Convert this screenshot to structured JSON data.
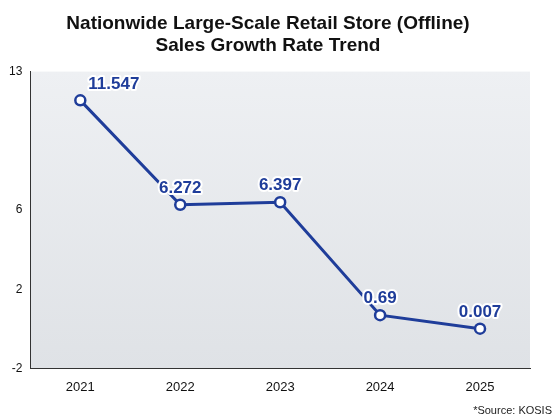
{
  "chart_data": {
    "type": "line",
    "title": "Nationwide Large-Scale Retail Store (Offline)",
    "subtitle": "Sales Growth Rate Trend",
    "categories": [
      "2021",
      "2022",
      "2023",
      "2024",
      "2025"
    ],
    "values": [
      11.547,
      6.272,
      6.397,
      0.69,
      0.007
    ],
    "color": "#1f3d9a",
    "marker": "circle",
    "ylim": [
      -2,
      13
    ],
    "yticks": [
      -2,
      2,
      6,
      13
    ],
    "grid": false,
    "data_labels": true,
    "annotations": [
      "*Source: KOSIS"
    ]
  }
}
